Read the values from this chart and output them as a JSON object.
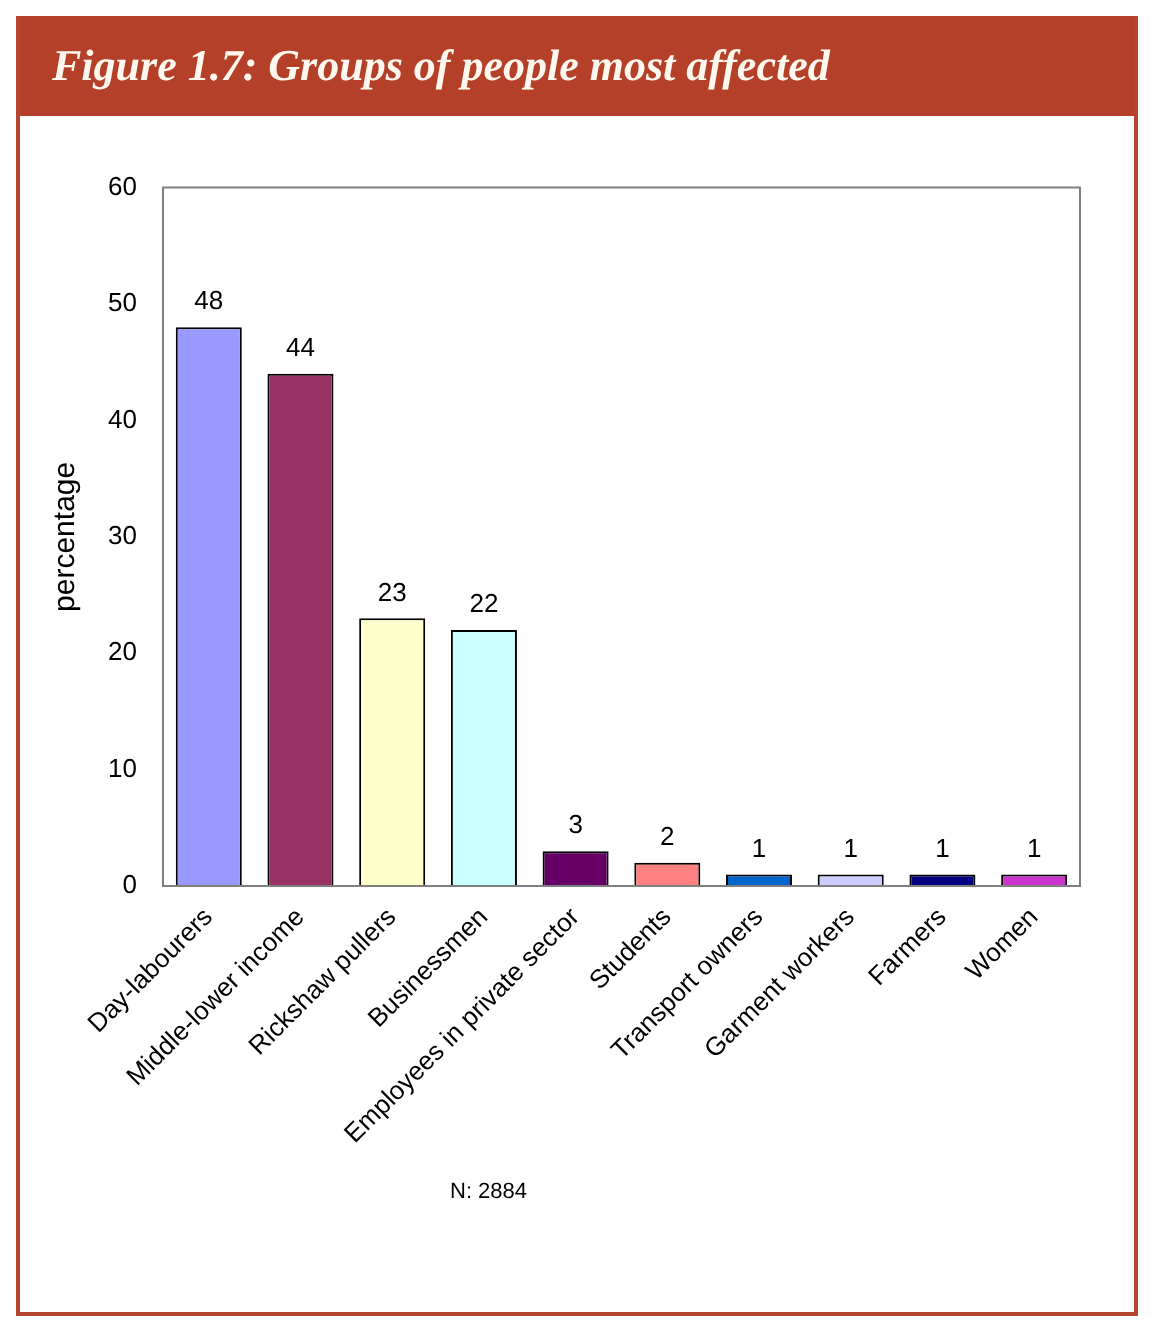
{
  "chart_data": {
    "type": "bar",
    "title": "Figure 1.7: Groups of people most affected",
    "ylabel": "percentage",
    "categories": [
      "Day-labourers",
      "Middle-lower income",
      "Rickshaw pullers",
      "Businessmen",
      "Employees in private sector",
      "Students",
      "Transport owners",
      "Garment workers",
      "Farmers",
      "Women"
    ],
    "values": [
      48,
      44,
      23,
      22,
      3,
      2,
      1,
      1,
      1,
      1
    ],
    "colors": [
      "#9999ff",
      "#993366",
      "#ffffcc",
      "#ccffff",
      "#660066",
      "#ff8080",
      "#0066cc",
      "#ccccff",
      "#000080",
      "#cc33cc"
    ],
    "ylim": [
      0,
      60
    ],
    "yticks": [
      0,
      10,
      20,
      30,
      40,
      50,
      60
    ],
    "grid": false,
    "legend": false,
    "data_labels": true,
    "annotations": [
      "N: 2884"
    ]
  }
}
